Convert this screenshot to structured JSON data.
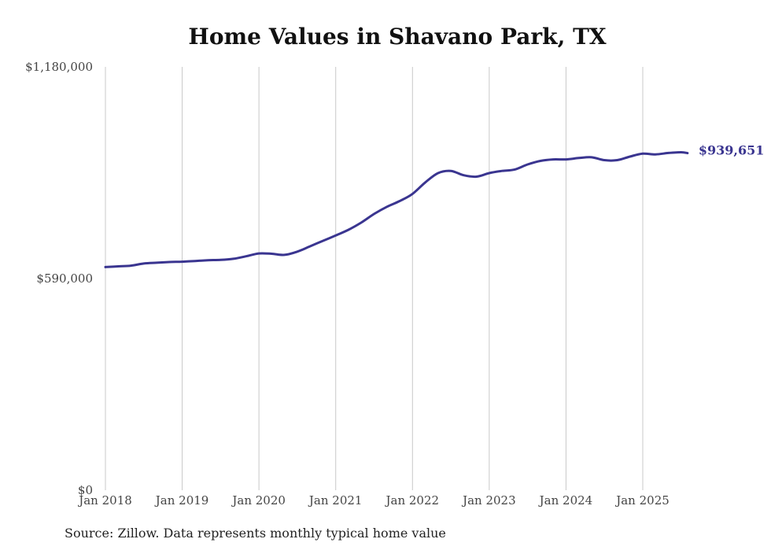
{
  "chart_data": {
    "type": "line",
    "title": "Home Values in Shavano Park, TX",
    "source": "Source: Zillow. Data represents monthly typical home value",
    "xlabel": "",
    "ylabel": "",
    "ylim": [
      0,
      1180000
    ],
    "yticks": [
      0,
      590000,
      1180000
    ],
    "ytick_labels": [
      "$0",
      "$590,000",
      "$1,180,000"
    ],
    "xlim": [
      2018.0,
      2025.583
    ],
    "xticks": [
      2018,
      2019,
      2020,
      2021,
      2022,
      2023,
      2024,
      2025
    ],
    "xtick_labels": [
      "Jan 2018",
      "Jan 2019",
      "Jan 2020",
      "Jan 2021",
      "Jan 2022",
      "Jan 2023",
      "Jan 2024",
      "Jan 2025"
    ],
    "grid": "vertical",
    "line_color": "#3a3590",
    "end_label": "$939,651",
    "series": [
      {
        "name": "Typical home value",
        "x": [
          2018.0,
          2018.167,
          2018.333,
          2018.5,
          2018.667,
          2018.833,
          2019.0,
          2019.167,
          2019.333,
          2019.5,
          2019.667,
          2019.833,
          2020.0,
          2020.167,
          2020.333,
          2020.5,
          2020.667,
          2020.833,
          2021.0,
          2021.167,
          2021.333,
          2021.5,
          2021.667,
          2021.833,
          2022.0,
          2022.167,
          2022.333,
          2022.5,
          2022.667,
          2022.833,
          2023.0,
          2023.167,
          2023.333,
          2023.5,
          2023.667,
          2023.833,
          2024.0,
          2024.167,
          2024.333,
          2024.5,
          2024.667,
          2024.833,
          2025.0,
          2025.167,
          2025.333,
          2025.5,
          2025.583
        ],
        "values": [
          622000,
          624000,
          626000,
          632000,
          634000,
          636000,
          637000,
          639000,
          641000,
          642000,
          645000,
          652000,
          660000,
          659000,
          656000,
          665000,
          680000,
          695000,
          710000,
          726000,
          746000,
          770000,
          790000,
          806000,
          826000,
          858000,
          884000,
          890000,
          878000,
          874000,
          884000,
          890000,
          894000,
          908000,
          918000,
          922000,
          922000,
          926000,
          928000,
          920000,
          920000,
          930000,
          938000,
          936000,
          940000,
          942000,
          939651
        ]
      }
    ]
  }
}
